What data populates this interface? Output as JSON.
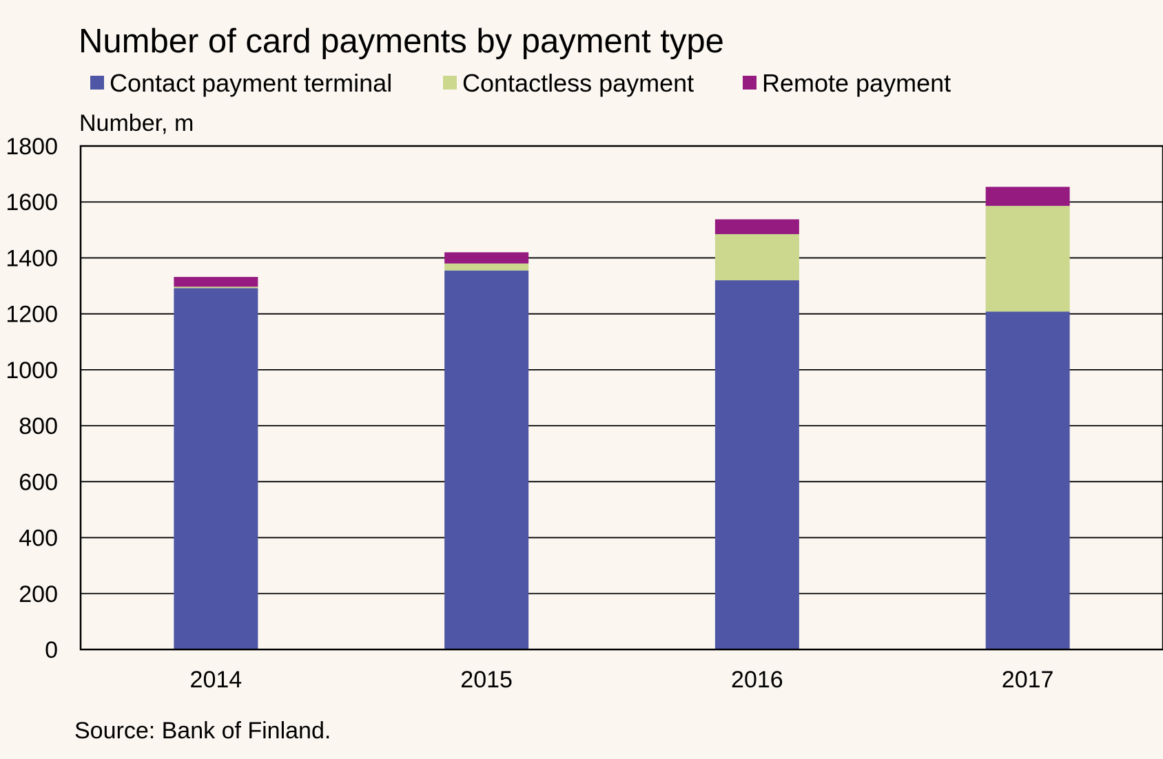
{
  "chart_data": {
    "type": "bar",
    "stacked": true,
    "title": "Number of card payments by payment type",
    "ylabel": "Number, m",
    "xlabel": "",
    "ylim": [
      0,
      1800
    ],
    "yticks": [
      0,
      200,
      400,
      600,
      800,
      1000,
      1200,
      1400,
      1600,
      1800
    ],
    "categories": [
      "2014",
      "2015",
      "2016",
      "2017"
    ],
    "series": [
      {
        "name": "Contact payment terminal",
        "color": "#4e56a5",
        "values": [
          1292,
          1355,
          1320,
          1208
        ]
      },
      {
        "name": "Contactless payment",
        "color": "#cbd88e",
        "values": [
          5,
          25,
          165,
          378
        ]
      },
      {
        "name": "Remote payment",
        "color": "#951b81",
        "values": [
          35,
          40,
          53,
          68
        ]
      }
    ],
    "grid": true,
    "legend_position": "top",
    "source": "Source: Bank of Finland."
  }
}
